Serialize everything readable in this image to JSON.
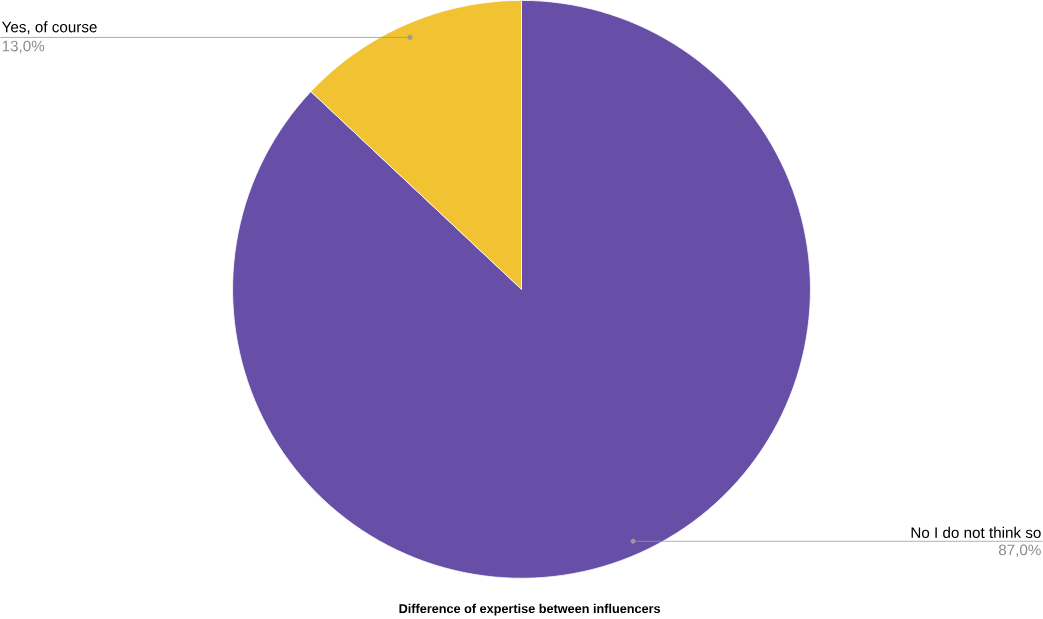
{
  "chart_data": {
    "type": "pie",
    "title": "Difference of expertise between influencers",
    "categories": [
      "No I do not think so",
      "Yes, of course"
    ],
    "values": [
      87,
      13
    ],
    "colors": [
      "#674ea7",
      "#f1c232"
    ],
    "value_labels": [
      "87,0%",
      "13,0%"
    ]
  }
}
